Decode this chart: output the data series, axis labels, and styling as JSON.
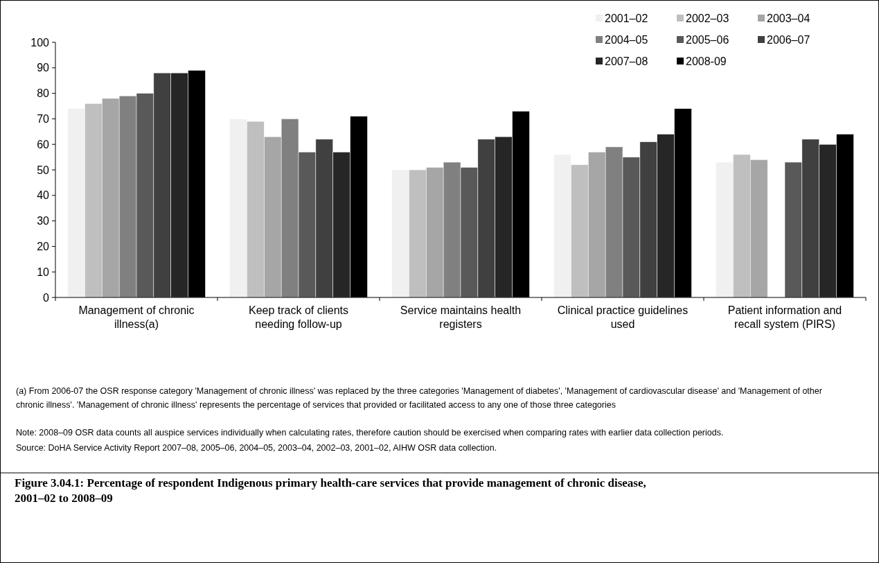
{
  "chart_data": {
    "type": "bar",
    "title": "Figure 3.04.1: Percentage of respondent Indigenous primary health-care services that provide management of chronic disease, 2001–02 to 2008–09",
    "categories": [
      "Management of chronic illness(a)",
      "Keep track of clients needing follow-up",
      "Service maintains health registers",
      "Clinical practice guidelines used",
      "Patient information and recall system (PIRS)"
    ],
    "series": [
      {
        "name": "2001–02",
        "color": "#f0f0f0",
        "values": [
          74,
          70,
          50,
          56,
          53
        ]
      },
      {
        "name": "2002–03",
        "color": "#bfbfbf",
        "values": [
          76,
          69,
          50,
          52,
          56
        ]
      },
      {
        "name": "2003–04",
        "color": "#a6a6a6",
        "values": [
          78,
          63,
          51,
          57,
          54
        ]
      },
      {
        "name": "2004–05",
        "color": "#808080",
        "values": [
          79,
          70,
          53,
          59,
          null
        ]
      },
      {
        "name": "2005–06",
        "color": "#595959",
        "values": [
          80,
          57,
          51,
          55,
          53
        ]
      },
      {
        "name": "2006–07",
        "color": "#404040",
        "values": [
          88,
          62,
          62,
          61,
          62
        ]
      },
      {
        "name": "2007–08",
        "color": "#262626",
        "values": [
          88,
          57,
          63,
          64,
          60
        ]
      },
      {
        "name": "2008-09",
        "color": "#000000",
        "values": [
          89,
          71,
          73,
          74,
          64
        ]
      }
    ],
    "ylim": [
      0,
      100
    ],
    "yticks": [
      0,
      10,
      20,
      30,
      40,
      50,
      60,
      70,
      80,
      90,
      100
    ],
    "grid": false,
    "legend": "top right",
    "annotations": [
      "(a) From 2006-07 the OSR response category 'Management of chronic illness' was replaced by the three categories 'Management of diabetes', 'Management of cardiovascular disease' and 'Management of other chronic illness'. 'Management of chronic illness' represents the percentage of services that provided or facilitated access to any one of those three categories",
      "Note: 2008–09 OSR data counts all auspice services individually when calculating rates, therefore caution should be exercised when comparing rates with earlier data collection periods.",
      "Source: DoHA Service Activity Report 2007–08, 2005–06, 2004–05, 2003–04, 2002–03, 2001–02, AIHW OSR data collection."
    ]
  }
}
